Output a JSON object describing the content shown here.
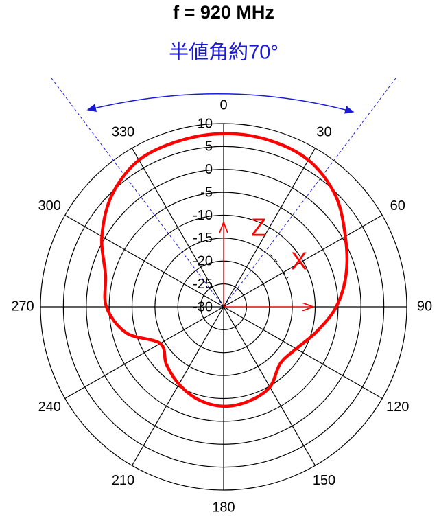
{
  "chart_data": {
    "type": "polar",
    "title": "f = 920 MHz",
    "subtitle": "半値角約70°",
    "theta_direction": "clockwise",
    "theta_zero": "top",
    "rlim": [
      -30,
      10
    ],
    "rticks": [
      10,
      5,
      0,
      -5,
      -10,
      -15,
      -20,
      -25,
      -30
    ],
    "thetaticks": [
      0,
      30,
      60,
      90,
      120,
      150,
      180,
      210,
      240,
      270,
      300,
      330
    ],
    "reference_lines": [
      -37,
      37
    ],
    "annotations": [
      "Z",
      "X"
    ],
    "series": [
      {
        "color": "#ff0000",
        "theta": [
          0,
          15,
          30,
          45,
          60,
          75,
          90,
          105,
          120,
          135,
          150,
          165,
          180,
          195,
          210,
          225,
          240,
          255,
          270,
          285,
          300,
          315,
          330,
          345
        ],
        "values": [
          7.8,
          7.7,
          7,
          4.5,
          0.7,
          -2.3,
          -5.4,
          -9,
          -11.7,
          -12.5,
          -9.8,
          -8.7,
          -8.3,
          -9,
          -10.5,
          -12.3,
          -14,
          -8,
          -4.4,
          -3.3,
          0.7,
          4.5,
          7,
          7.5
        ]
      }
    ]
  }
}
